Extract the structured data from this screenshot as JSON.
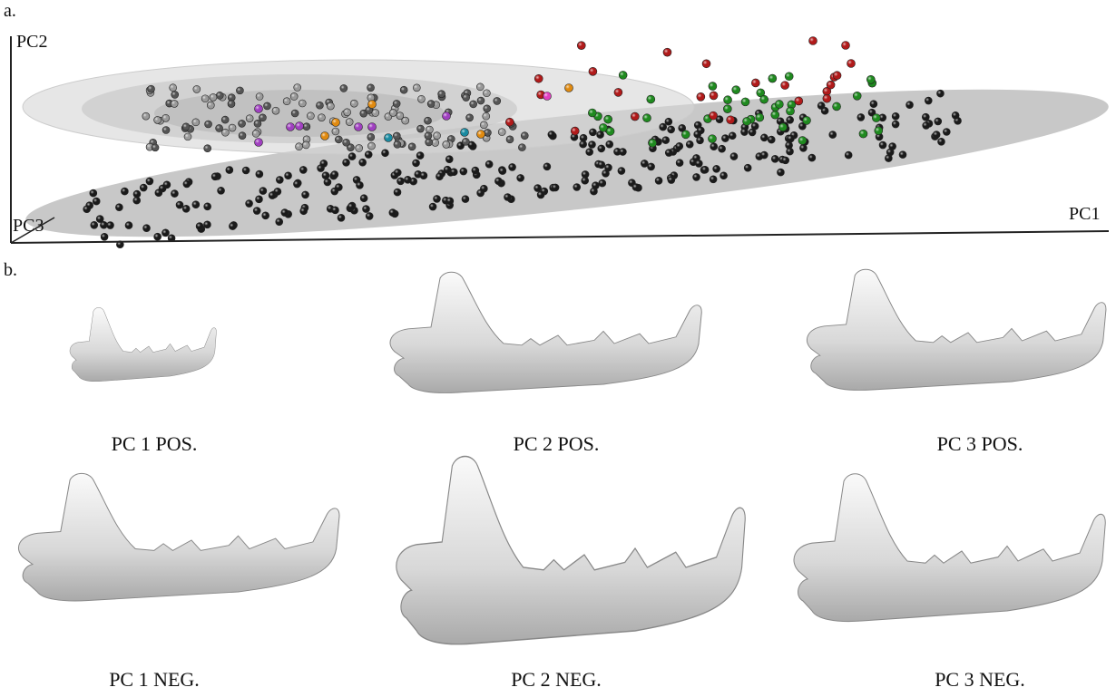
{
  "panel_a": {
    "label": "a.",
    "axes": {
      "x": "PC1",
      "y": "PC2",
      "z": "PC3"
    }
  },
  "panel_b": {
    "label": "b.",
    "shapes": [
      {
        "caption": "PC 1 POS."
      },
      {
        "caption": "PC 2 POS."
      },
      {
        "caption": "PC 3 POS."
      },
      {
        "caption": "PC 1 NEG."
      },
      {
        "caption": "PC 2 NEG."
      },
      {
        "caption": "PC 3 NEG."
      }
    ]
  }
}
